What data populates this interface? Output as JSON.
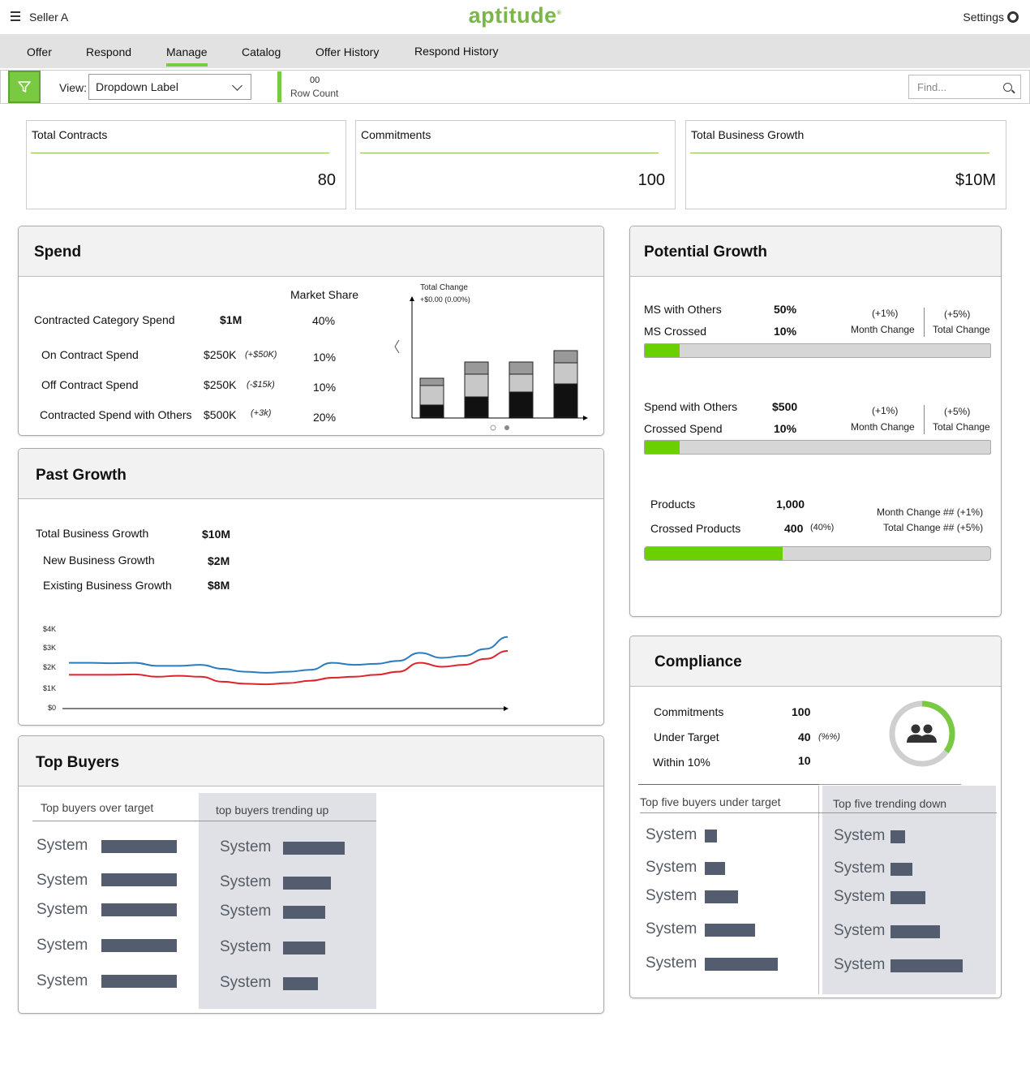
{
  "header": {
    "user": "Seller A",
    "logo": "aptitude",
    "settings_label": "Settings"
  },
  "tabs": [
    "Offer",
    "Respond",
    "Manage",
    "Catalog",
    "Offer History",
    "Respond History"
  ],
  "active_tab": "Manage",
  "filter": {
    "view_label": "View:",
    "dropdown_value": "Dropdown Label",
    "row_count": "00",
    "row_count_label": "Row Count",
    "search_placeholder": "Find..."
  },
  "kpis": [
    {
      "title": "Total Contracts",
      "value": "80"
    },
    {
      "title": "Commitments",
      "value": "100"
    },
    {
      "title": "Total Business Growth",
      "value": "$10M"
    }
  ],
  "spend": {
    "title": "Spend",
    "market_share_label": "Market Share",
    "main": {
      "label": "Contracted Category Spend",
      "value": "$1M",
      "share": "40%"
    },
    "rows": [
      {
        "label": "On Contract Spend",
        "value": "$250K",
        "change": "(+$50K)",
        "share": "10%"
      },
      {
        "label": "Off Contract Spend",
        "value": "$250K",
        "change": "(-$15k)",
        "share": "10%"
      },
      {
        "label": "Contracted Spend with Others",
        "value": "$500K",
        "change": "(+3k)",
        "share": "20%"
      }
    ],
    "chart_title": "Total Change",
    "chart_subtitle": "+$0.00 (0.00%)"
  },
  "chart_data": [
    {
      "type": "bar",
      "title": "Total Change",
      "subtitle": "+$0.00 (0.00%)",
      "categories": [
        "1",
        "2",
        "3",
        "4"
      ],
      "series": [
        {
          "values": [
            15,
            25,
            31,
            41
          ]
        },
        {
          "values": [
            24,
            28,
            22,
            26
          ]
        },
        {
          "values": [
            9,
            15,
            15,
            15
          ]
        }
      ]
    },
    {
      "type": "line",
      "yticks": [
        "$4K",
        "$3K",
        "$2K",
        "$1K",
        "$0"
      ],
      "ylim": [
        0,
        4
      ],
      "x": [
        0,
        1,
        2,
        3,
        4,
        5,
        6,
        7,
        8,
        9,
        10,
        11,
        12,
        13,
        14,
        15,
        16,
        17,
        18,
        19,
        20
      ],
      "series": [
        {
          "color": "#2b7bbf",
          "values": [
            2.3,
            2.3,
            2.28,
            2.3,
            2.15,
            2.15,
            2.2,
            2.0,
            1.85,
            1.8,
            1.85,
            1.95,
            2.3,
            2.2,
            2.25,
            2.4,
            2.8,
            2.55,
            2.65,
            3.0,
            3.6
          ]
        },
        {
          "color": "#e0232a",
          "values": [
            1.7,
            1.7,
            1.7,
            1.72,
            1.6,
            1.65,
            1.6,
            1.35,
            1.25,
            1.22,
            1.28,
            1.4,
            1.55,
            1.6,
            1.7,
            1.85,
            2.3,
            2.1,
            2.2,
            2.5,
            2.9
          ]
        }
      ]
    }
  ],
  "past_growth": {
    "title": "Past Growth",
    "rows": [
      {
        "label": "Total Business Growth",
        "value": "$10M"
      },
      {
        "label": "New Business Growth",
        "value": "$2M"
      },
      {
        "label": "Existing Business Growth",
        "value": "$8M"
      }
    ],
    "yticks": [
      "$4K",
      "$3K",
      "$2K",
      "$1K",
      "$0"
    ]
  },
  "top_buyers": {
    "title": "Top Buyers",
    "col1_title": "Top buyers over target",
    "col2_title": "top buyers trending up",
    "col1": [
      {
        "name": "System",
        "fraction": 1.0
      },
      {
        "name": "System",
        "fraction": 1.0
      },
      {
        "name": "System",
        "fraction": 1.0
      },
      {
        "name": "System",
        "fraction": 1.0
      },
      {
        "name": "System",
        "fraction": 1.0
      }
    ],
    "col2": [
      {
        "name": "System",
        "fraction": 1.0
      },
      {
        "name": "System",
        "fraction": 0.77
      },
      {
        "name": "System",
        "fraction": 0.68
      },
      {
        "name": "System",
        "fraction": 0.68
      },
      {
        "name": "System",
        "fraction": 0.57
      }
    ]
  },
  "potential_growth": {
    "title": "Potential Growth",
    "group1": {
      "l1": "MS with Others",
      "v1": "50%",
      "l2": "MS Crossed",
      "v2": "10%",
      "mc": "(+1%)",
      "mc_label": "Month Change",
      "tc": "(+5%)",
      "tc_label": "Total Change",
      "progress": 0.1
    },
    "group2": {
      "l1": "Spend with Others",
      "v1": "$500",
      "l2": "Crossed Spend",
      "v2": "10%",
      "mc": "(+1%)",
      "mc_label": "Month Change",
      "tc": "(+5%)",
      "tc_label": "Total Change",
      "progress": 0.1
    },
    "group3": {
      "l1": "Products",
      "v1": "1,000",
      "l2": "Crossed Products",
      "v2": "400",
      "v2_pct": "(40%)",
      "mc": "Month Change ## (+1%)",
      "tc": "Total Change ## (+5%)",
      "progress": 0.4
    }
  },
  "compliance": {
    "title": "Compliance",
    "rows": [
      {
        "label": "Commitments",
        "value": "100",
        "note": ""
      },
      {
        "label": "Under Target",
        "value": "40",
        "note": "(%%)"
      },
      {
        "label": "Within 10%",
        "value": "10",
        "note": ""
      }
    ],
    "donut_fraction": 0.35,
    "col1_title": "Top five buyers under target",
    "col2_title": "Top five trending  down",
    "col1": [
      {
        "name": "System",
        "fraction": 0.17
      },
      {
        "name": "System",
        "fraction": 0.28
      },
      {
        "name": "System",
        "fraction": 0.46
      },
      {
        "name": "System",
        "fraction": 0.69
      },
      {
        "name": "System",
        "fraction": 1.0
      }
    ],
    "col2": [
      {
        "name": "System",
        "fraction": 0.2
      },
      {
        "name": "System",
        "fraction": 0.3
      },
      {
        "name": "System",
        "fraction": 0.48
      },
      {
        "name": "System",
        "fraction": 0.69
      },
      {
        "name": "System",
        "fraction": 1.0
      }
    ]
  },
  "colors": {
    "accent": "#7ac943",
    "progress": "#6ad000",
    "bar": "#545d70",
    "line_blue": "#2b7bbf",
    "line_red": "#e0232a"
  }
}
